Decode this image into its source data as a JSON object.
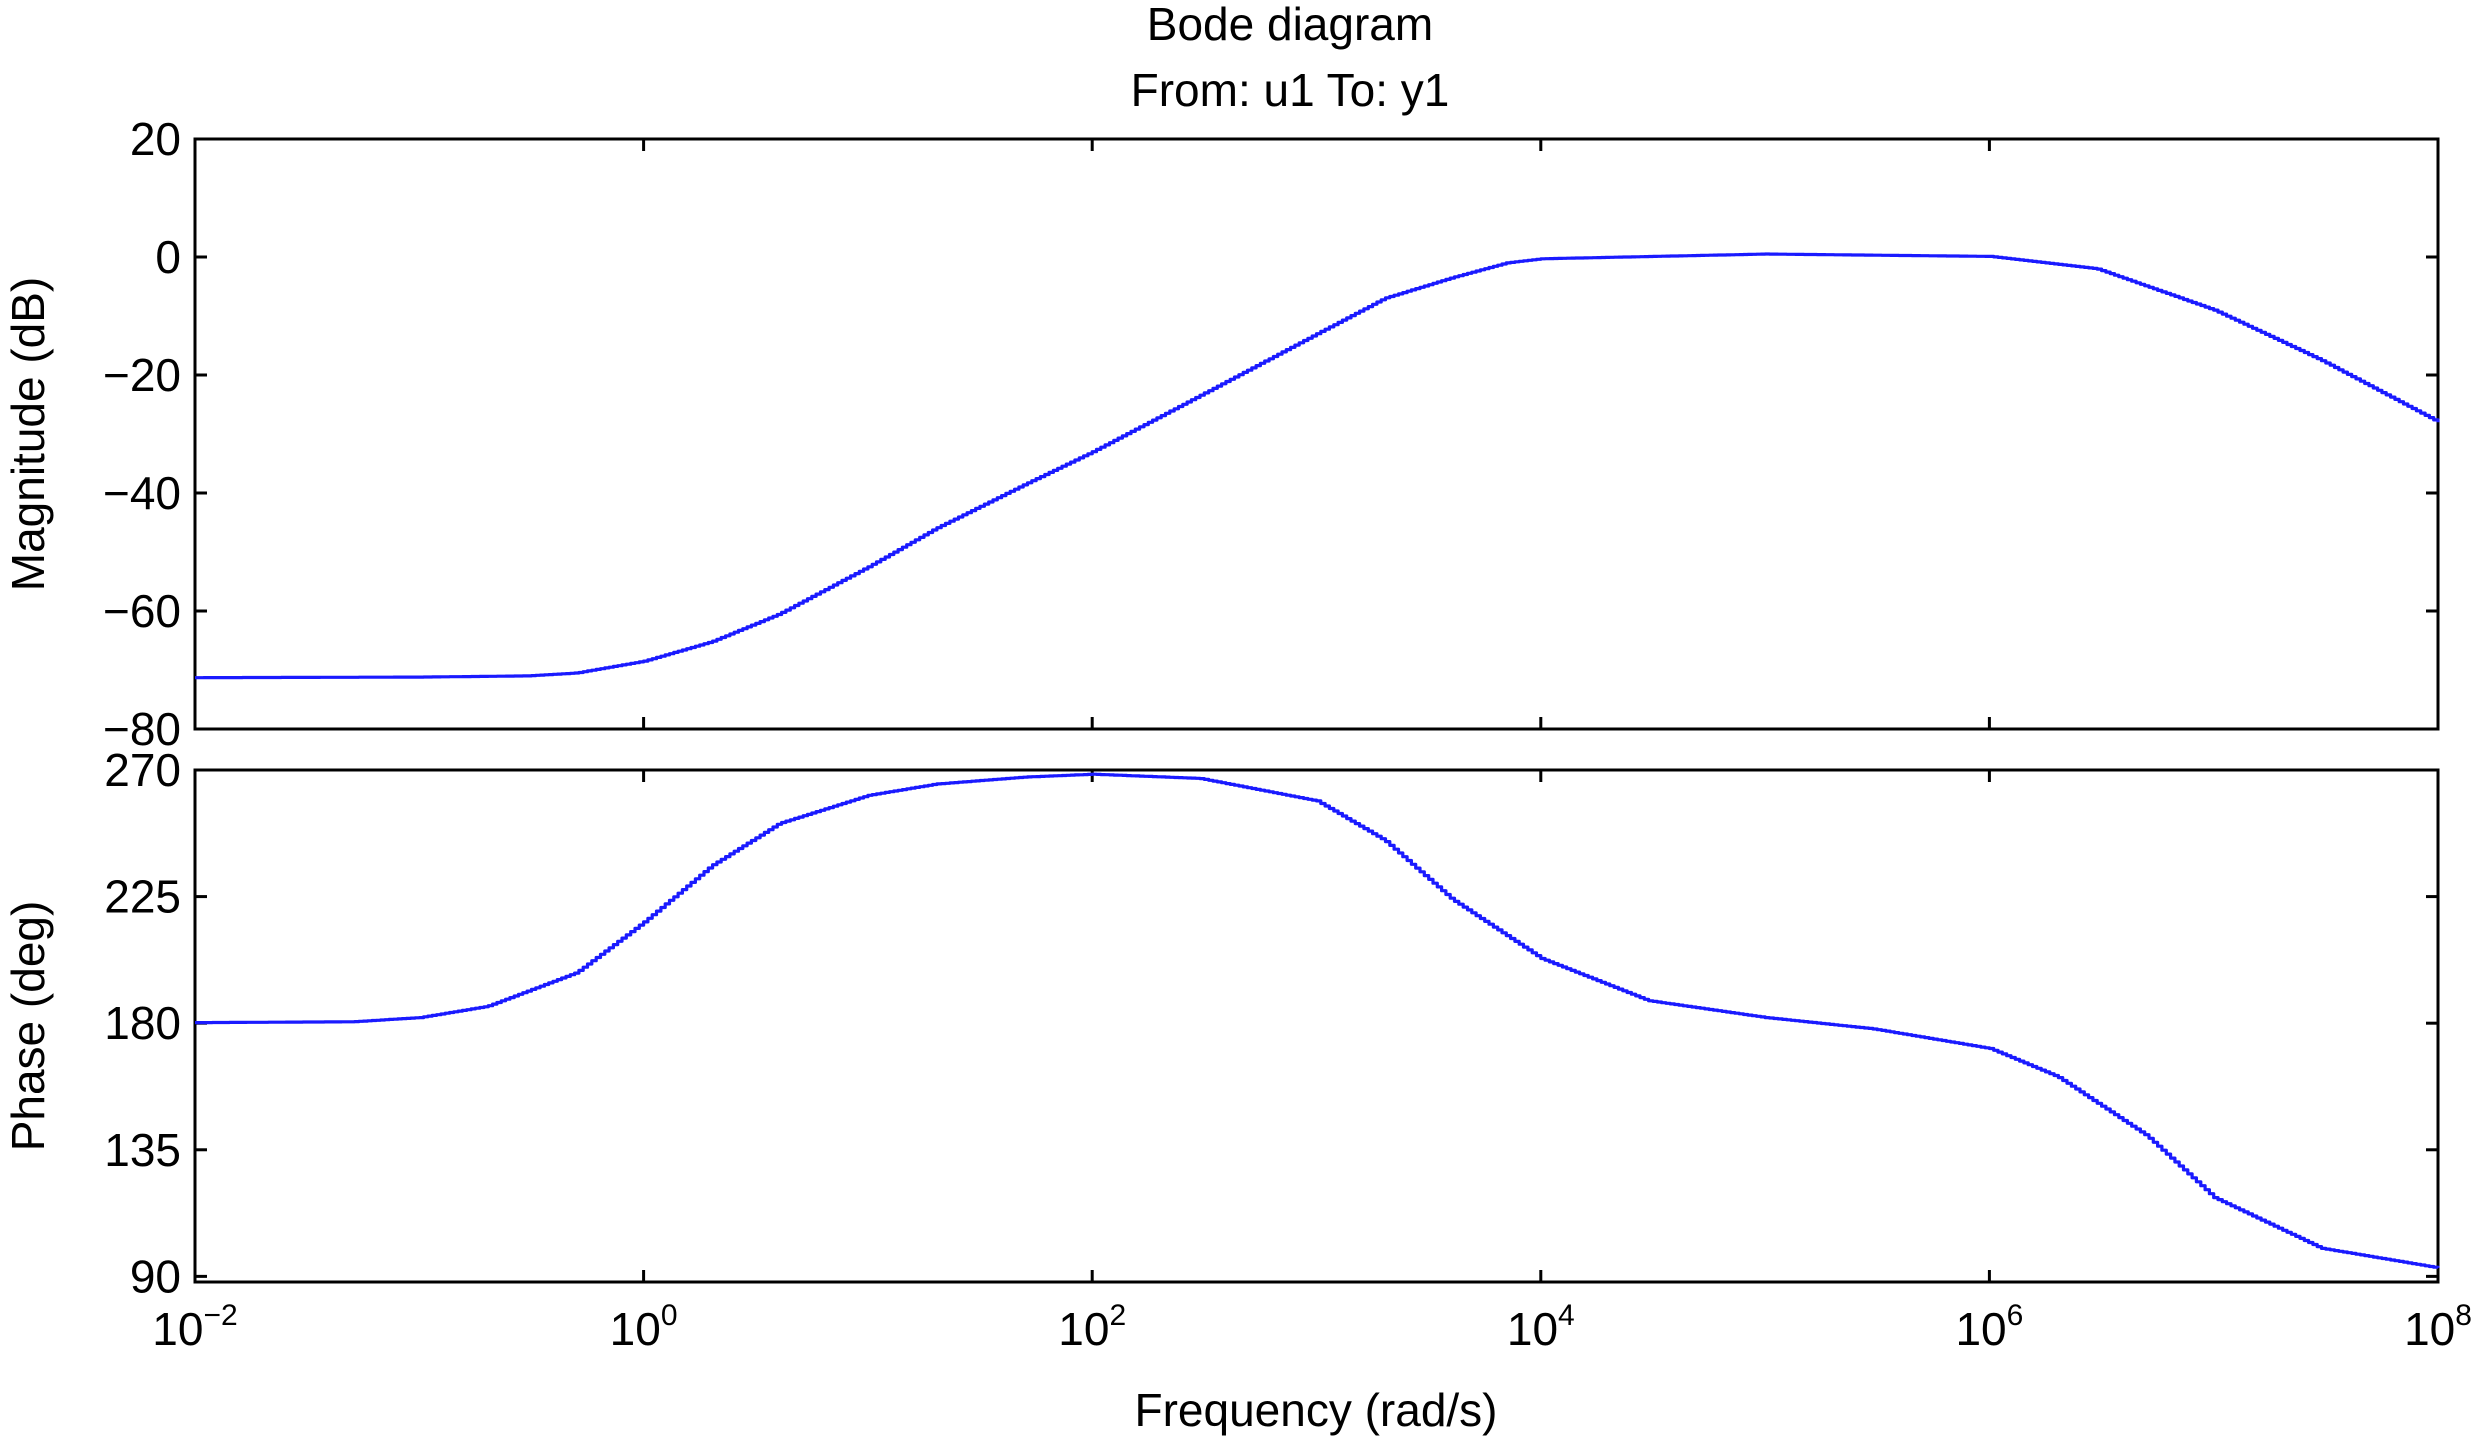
{
  "title": "Bode diagram",
  "subtitle": "From: u1  To: y1",
  "colors": {
    "trace": "#1a1aff",
    "axes": "#000000",
    "background": "#ffffff"
  },
  "chart_data": [
    {
      "type": "line",
      "panel": "magnitude",
      "ylabel": "Magnitude (dB)",
      "xscale": "log",
      "xlim": [
        0.01,
        100000000
      ],
      "ylim": [
        -80,
        20
      ],
      "yticks": [
        20,
        0,
        -20,
        -40,
        -60,
        -80
      ],
      "ytick_labels": [
        "20",
        "0",
        "−20",
        "−40",
        "−60",
        "−80"
      ],
      "grid": false,
      "series": [
        {
          "x": [
            0.01,
            0.1,
            0.3,
            0.5,
            1,
            2,
            4,
            10,
            20,
            50,
            100,
            300,
            1000,
            2000,
            4000,
            7000,
            10000,
            100000,
            1000000,
            3000000,
            10000000,
            30000000,
            100000000
          ],
          "y": [
            -71.3,
            -71.2,
            -71.0,
            -70.5,
            -68.5,
            -65.2,
            -60.5,
            -52.5,
            -46.0,
            -38.5,
            -33.0,
            -23.5,
            -13.0,
            -7.0,
            -3.5,
            -1.0,
            -0.3,
            0.5,
            0.1,
            -2.0,
            -9.0,
            -17.5,
            -28.0
          ]
        }
      ]
    },
    {
      "type": "line",
      "panel": "phase",
      "ylabel": "Phase (deg)",
      "xlabel": "Frequency (rad/s)",
      "xscale": "log",
      "xlim": [
        0.01,
        100000000
      ],
      "ylim": [
        88,
        270
      ],
      "yticks": [
        270,
        225,
        180,
        135,
        90
      ],
      "ytick_labels": [
        "270",
        "225",
        "180",
        "135",
        "90"
      ],
      "xticks": [
        0.01,
        1,
        100,
        10000,
        1000000,
        100000000
      ],
      "xtick_labels": [
        {
          "base": "10",
          "exp": "−2"
        },
        {
          "base": "10",
          "exp": "0"
        },
        {
          "base": "10",
          "exp": "2"
        },
        {
          "base": "10",
          "exp": "4"
        },
        {
          "base": "10",
          "exp": "6"
        },
        {
          "base": "10",
          "exp": "8"
        }
      ],
      "grid": false,
      "series": [
        {
          "x": [
            0.01,
            0.05,
            0.1,
            0.2,
            0.5,
            1,
            2,
            4,
            10,
            20,
            50,
            100,
            300,
            1000,
            2000,
            4000,
            10000,
            30000,
            100000,
            300000,
            1000000,
            2000000,
            5000000,
            10000000,
            30000000,
            100000000
          ],
          "y": [
            180.2,
            180.5,
            182.0,
            186.0,
            198.0,
            216.0,
            236.0,
            251.0,
            261.0,
            265.0,
            267.5,
            268.5,
            267.0,
            259.0,
            245.0,
            224.0,
            203.0,
            188.0,
            182.0,
            178.0,
            171.0,
            161.0,
            140.0,
            118.0,
            100.0,
            93.0
          ]
        }
      ]
    }
  ]
}
